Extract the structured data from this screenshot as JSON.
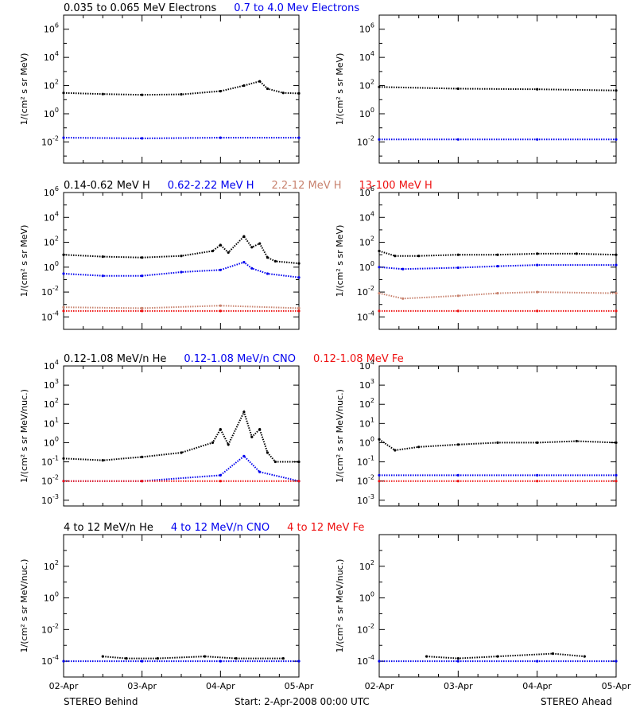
{
  "colors": {
    "black": "#000000",
    "blue": "#0000ee",
    "tan": "#c8826e",
    "red": "#ee1111"
  },
  "footer": {
    "left": "STEREO Behind",
    "center": "Start:  2-Apr-2008 00:00 UTC",
    "right": "STEREO Ahead"
  },
  "chart_data": [
    {
      "type": "scatter",
      "id": "electrons-behind",
      "row": 0,
      "col": 0,
      "title_items": [
        {
          "text": "0.035 to 0.065 MeV Electrons",
          "color": "#000000"
        },
        {
          "text": "0.7 to 4.0 Mev Electrons",
          "color": "#0000ee"
        }
      ],
      "ylabel": "1/(cm² s sr MeV)",
      "yscale": "log",
      "ylim_exp": [
        -3.5,
        7
      ],
      "ytick_exp": [
        -2,
        0,
        2,
        4,
        6
      ],
      "xlabel": "",
      "xlim": [
        "2008-04-02",
        "2008-04-05"
      ],
      "xticks": [],
      "series": [
        {
          "color": "#000000",
          "x": [
            0,
            0.5,
            1,
            1.5,
            2,
            2.3,
            2.5,
            2.6,
            2.8,
            3.0
          ],
          "y": [
            30,
            25,
            22,
            24,
            40,
            100,
            200,
            60,
            30,
            28
          ]
        },
        {
          "color": "#0000ee",
          "x": [
            0,
            1,
            2,
            3
          ],
          "y": [
            0.02,
            0.018,
            0.02,
            0.02
          ]
        }
      ]
    },
    {
      "type": "scatter",
      "id": "electrons-ahead",
      "row": 0,
      "col": 1,
      "title_items": [],
      "ylabel": "1/(cm² s sr MeV)",
      "yscale": "log",
      "ylim_exp": [
        -3.5,
        7
      ],
      "ytick_exp": [
        -2,
        0,
        2,
        4,
        6
      ],
      "xlabel": "",
      "xlim": [
        "2008-04-02",
        "2008-04-05"
      ],
      "xticks": [],
      "series": [
        {
          "color": "#000000",
          "x": [
            0,
            1,
            2,
            3
          ],
          "y": [
            80,
            60,
            55,
            45
          ]
        },
        {
          "color": "#0000ee",
          "x": [
            0,
            1,
            2,
            3
          ],
          "y": [
            0.015,
            0.015,
            0.015,
            0.015
          ]
        }
      ]
    },
    {
      "type": "scatter",
      "id": "protons-behind",
      "row": 1,
      "col": 0,
      "title_items": [
        {
          "text": "0.14-0.62 MeV H",
          "color": "#000000"
        },
        {
          "text": "0.62-2.22 MeV H",
          "color": "#0000ee"
        },
        {
          "text": "2.2-12 MeV H",
          "color": "#c8826e"
        },
        {
          "text": "13-100 MeV H",
          "color": "#ee1111"
        }
      ],
      "ylabel": "1/(cm² s sr MeV)",
      "yscale": "log",
      "ylim_exp": [
        -5,
        6
      ],
      "ytick_exp": [
        -4,
        -2,
        0,
        2,
        4,
        6
      ],
      "xlabel": "",
      "xlim": [
        "2008-04-02",
        "2008-04-05"
      ],
      "xticks": [],
      "series": [
        {
          "color": "#000000",
          "x": [
            0,
            0.5,
            1,
            1.5,
            1.9,
            2.0,
            2.1,
            2.3,
            2.4,
            2.5,
            2.6,
            2.7,
            3.0
          ],
          "y": [
            10,
            7,
            6,
            8,
            20,
            60,
            15,
            300,
            40,
            80,
            6,
            3,
            2
          ]
        },
        {
          "color": "#0000ee",
          "x": [
            0,
            0.5,
            1,
            1.5,
            2.0,
            2.3,
            2.4,
            2.6,
            3.0
          ],
          "y": [
            0.3,
            0.2,
            0.2,
            0.4,
            0.6,
            2.5,
            0.8,
            0.3,
            0.15
          ]
        },
        {
          "color": "#c8826e",
          "x": [
            0,
            1,
            2,
            3
          ],
          "y": [
            0.0006,
            0.0005,
            0.0008,
            0.0005
          ]
        },
        {
          "color": "#ee1111",
          "x": [
            0,
            1,
            2,
            3
          ],
          "y": [
            0.0003,
            0.0003,
            0.0003,
            0.0003
          ]
        }
      ]
    },
    {
      "type": "scatter",
      "id": "protons-ahead",
      "row": 1,
      "col": 1,
      "title_items": [],
      "ylabel": "1/(cm² s sr MeV)",
      "yscale": "log",
      "ylim_exp": [
        -5,
        6
      ],
      "ytick_exp": [
        -4,
        -2,
        0,
        2,
        4,
        6
      ],
      "xlabel": "",
      "xlim": [
        "2008-04-02",
        "2008-04-05"
      ],
      "xticks": [],
      "series": [
        {
          "color": "#000000",
          "x": [
            0,
            0.2,
            0.5,
            1,
            1.5,
            2,
            2.5,
            3
          ],
          "y": [
            20,
            8,
            8,
            10,
            10,
            12,
            12,
            10
          ]
        },
        {
          "color": "#0000ee",
          "x": [
            0,
            0.3,
            1,
            1.5,
            2,
            3
          ],
          "y": [
            1,
            0.7,
            0.9,
            1.2,
            1.5,
            1.5
          ]
        },
        {
          "color": "#c8826e",
          "x": [
            0,
            0.3,
            1,
            1.5,
            2,
            3
          ],
          "y": [
            0.008,
            0.003,
            0.005,
            0.008,
            0.01,
            0.008
          ]
        },
        {
          "color": "#ee1111",
          "x": [
            0,
            1,
            2,
            3
          ],
          "y": [
            0.0003,
            0.0003,
            0.0003,
            0.0003
          ]
        }
      ]
    },
    {
      "type": "scatter",
      "id": "heavy-low-behind",
      "row": 2,
      "col": 0,
      "title_items": [
        {
          "text": "0.12-1.08 MeV/n He",
          "color": "#000000"
        },
        {
          "text": "0.12-1.08 MeV/n CNO",
          "color": "#0000ee"
        },
        {
          "text": "0.12-1.08 MeV Fe",
          "color": "#ee1111"
        }
      ],
      "ylabel": "1/(cm² s sr MeV/nuc.)",
      "yscale": "log",
      "ylim_exp": [
        -3.3,
        4
      ],
      "ytick_exp": [
        -3,
        -2,
        -1,
        0,
        1,
        2,
        3,
        4
      ],
      "xlabel": "",
      "xlim": [
        "2008-04-02",
        "2008-04-05"
      ],
      "xticks": [],
      "series": [
        {
          "color": "#000000",
          "x": [
            0,
            0.5,
            1,
            1.5,
            1.9,
            2.0,
            2.1,
            2.3,
            2.4,
            2.5,
            2.6,
            2.7,
            3.0
          ],
          "y": [
            0.15,
            0.12,
            0.18,
            0.3,
            1,
            5,
            0.8,
            40,
            2,
            5,
            0.3,
            0.1,
            0.1
          ]
        },
        {
          "color": "#0000ee",
          "x": [
            0,
            1,
            2,
            2.3,
            2.5,
            3
          ],
          "y": [
            0.01,
            0.01,
            0.02,
            0.2,
            0.03,
            0.01
          ]
        },
        {
          "color": "#ee1111",
          "x": [
            0,
            1,
            2,
            3
          ],
          "y": [
            0.01,
            0.01,
            0.01,
            0.01
          ]
        }
      ]
    },
    {
      "type": "scatter",
      "id": "heavy-low-ahead",
      "row": 2,
      "col": 1,
      "title_items": [],
      "ylabel": "1/(cm² s sr MeV/nuc.)",
      "yscale": "log",
      "ylim_exp": [
        -3.3,
        4
      ],
      "ytick_exp": [
        -3,
        -2,
        -1,
        0,
        1,
        2,
        3,
        4
      ],
      "xlabel": "",
      "xlim": [
        "2008-04-02",
        "2008-04-05"
      ],
      "xticks": [],
      "series": [
        {
          "color": "#000000",
          "x": [
            0,
            0.2,
            0.5,
            1,
            1.5,
            2,
            2.5,
            3
          ],
          "y": [
            1.5,
            0.4,
            0.6,
            0.8,
            1,
            1,
            1.2,
            1
          ]
        },
        {
          "color": "#0000ee",
          "x": [
            0,
            1,
            2,
            3
          ],
          "y": [
            0.02,
            0.02,
            0.02,
            0.02
          ]
        },
        {
          "color": "#ee1111",
          "x": [
            0,
            1,
            2,
            3
          ],
          "y": [
            0.01,
            0.01,
            0.01,
            0.01
          ]
        }
      ]
    },
    {
      "type": "scatter",
      "id": "heavy-high-behind",
      "row": 3,
      "col": 0,
      "title_items": [
        {
          "text": "4 to 12 MeV/n He",
          "color": "#000000"
        },
        {
          "text": "4 to 12 MeV/n CNO",
          "color": "#0000ee"
        },
        {
          "text": "4 to 12 MeV Fe",
          "color": "#ee1111"
        }
      ],
      "ylabel": "1/(cm² s sr MeV/nuc.)",
      "yscale": "log",
      "ylim_exp": [
        -5,
        4
      ],
      "ytick_exp": [
        -4,
        -2,
        0,
        2
      ],
      "xlabel": "",
      "xlim": [
        "2008-04-02",
        "2008-04-05"
      ],
      "xticks": [
        "02-Apr",
        "03-Apr",
        "04-Apr",
        "05-Apr"
      ],
      "series": [
        {
          "color": "#000000",
          "x": [
            0.5,
            0.8,
            1.2,
            1.8,
            2.2,
            2.8
          ],
          "y": [
            0.0002,
            0.00015,
            0.00015,
            0.0002,
            0.00015,
            0.00015
          ]
        },
        {
          "color": "#0000ee",
          "x": [
            0,
            1,
            2,
            3
          ],
          "y": [
            0.0001,
            0.0001,
            0.0001,
            0.0001
          ]
        }
      ]
    },
    {
      "type": "scatter",
      "id": "heavy-high-ahead",
      "row": 3,
      "col": 1,
      "title_items": [],
      "ylabel": "1/(cm² s sr MeV/nuc.)",
      "yscale": "log",
      "ylim_exp": [
        -5,
        4
      ],
      "ytick_exp": [
        -4,
        -2,
        0,
        2
      ],
      "xlabel": "",
      "xlim": [
        "2008-04-02",
        "2008-04-05"
      ],
      "xticks": [
        "02-Apr",
        "03-Apr",
        "04-Apr",
        "05-Apr"
      ],
      "series": [
        {
          "color": "#000000",
          "x": [
            0.6,
            1.0,
            1.5,
            2.2,
            2.6
          ],
          "y": [
            0.0002,
            0.00015,
            0.0002,
            0.0003,
            0.0002
          ]
        },
        {
          "color": "#0000ee",
          "x": [
            0,
            1,
            2,
            3
          ],
          "y": [
            0.0001,
            0.0001,
            0.0001,
            0.0001
          ]
        }
      ]
    }
  ]
}
